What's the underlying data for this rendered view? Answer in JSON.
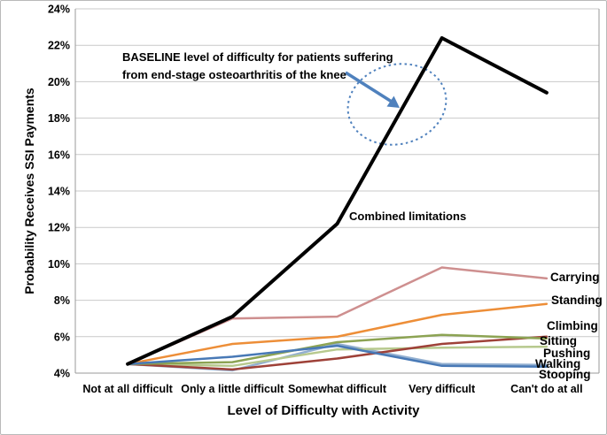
{
  "window": {
    "background": "#FFFFFF",
    "border_color": "#B9B9B9"
  },
  "chart_data": {
    "type": "line",
    "title": "",
    "xlabel": "Level of Difficulty with Activity",
    "ylabel": "Probability Receives SSI Payments",
    "categories": [
      "Not at all difficult",
      "Only a little difficult",
      "Somewhat difficult",
      "Very difficult",
      "Can't do at all"
    ],
    "ylim": [
      4,
      24
    ],
    "y_tick_labels": [
      "4%",
      "6%",
      "8%",
      "10%",
      "12%",
      "14%",
      "16%",
      "18%",
      "20%",
      "22%",
      "24%"
    ],
    "grid": true,
    "gridline_color": "#C9C9C9",
    "axis_color": "#9A9A9A",
    "text_color": "#000000",
    "legend_position": "inline-right-labels",
    "series": [
      {
        "name": "Combined limitations",
        "color": "#000000",
        "width": 4,
        "values": [
          4.5,
          7.1,
          12.2,
          22.4,
          19.4
        ]
      },
      {
        "name": "Carrying",
        "color": "#CE8F8F",
        "width": 2.5,
        "values": [
          4.5,
          7.0,
          7.1,
          9.8,
          9.2
        ]
      },
      {
        "name": "Standing",
        "color": "#ED8E38",
        "width": 2.5,
        "values": [
          4.5,
          5.6,
          6.0,
          7.2,
          7.8
        ]
      },
      {
        "name": "Climbing",
        "color": "#8CA353",
        "width": 2.5,
        "values": [
          4.5,
          4.6,
          5.7,
          6.1,
          5.9
        ]
      },
      {
        "name": "Sitting",
        "color": "#9E4138",
        "width": 2.5,
        "values": [
          4.5,
          4.2,
          4.8,
          5.6,
          6.0
        ]
      },
      {
        "name": "Pushing",
        "color": "#B7C98E",
        "width": 2.5,
        "values": [
          4.5,
          4.4,
          5.3,
          5.4,
          5.45
        ]
      },
      {
        "name": "Walking",
        "color": "#92AFD0",
        "width": 2.5,
        "values": [
          4.5,
          4.15,
          5.6,
          4.5,
          4.45
        ]
      },
      {
        "name": "Stooping",
        "color": "#4879B6",
        "width": 2.5,
        "values": [
          4.5,
          4.9,
          5.5,
          4.4,
          4.35
        ]
      }
    ],
    "inline_label": "Combined limitations",
    "annotation": {
      "text_line1": "BASELINE level of difficulty for patients suffering",
      "text_line2": "from end-stage osteoarthritis of the knee",
      "arrow_color": "#4F81BD",
      "ellipse_color": "#4F81BD"
    }
  }
}
